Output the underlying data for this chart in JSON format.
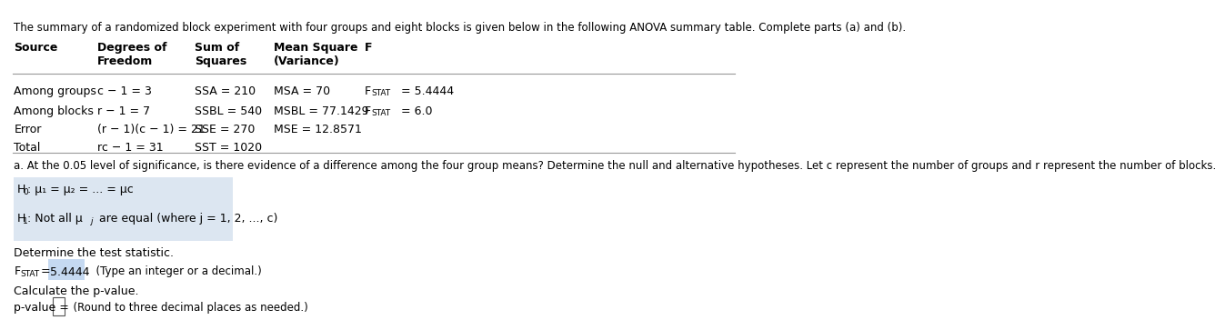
{
  "title": "The summary of a randomized block experiment with four groups and eight blocks is given below in the following ANOVA summary table. Complete parts (a) and (b).",
  "part_a_label": "a. At the 0.05 level of significance, is there evidence of a difference among the four group means? Determine the null and alternative hypotheses. Let c represent the number of groups and r represent the number of blocks.",
  "determine_label": "Determine the test statistic.",
  "fstat_value": "5.4444",
  "fstat_hint": "(Type an integer or a decimal.)",
  "pvalue_label": "Calculate the p-value.",
  "pvalue_hint": "(Round to three decimal places as needed.)",
  "bg_color": "#ffffff",
  "text_color": "#000000",
  "highlight_color": "#dce6f1",
  "box_color": "#c5d9f1",
  "table_line_color": "#999999",
  "font_size_title": 8.5,
  "font_size_body": 9.0,
  "font_size_small": 8.5
}
